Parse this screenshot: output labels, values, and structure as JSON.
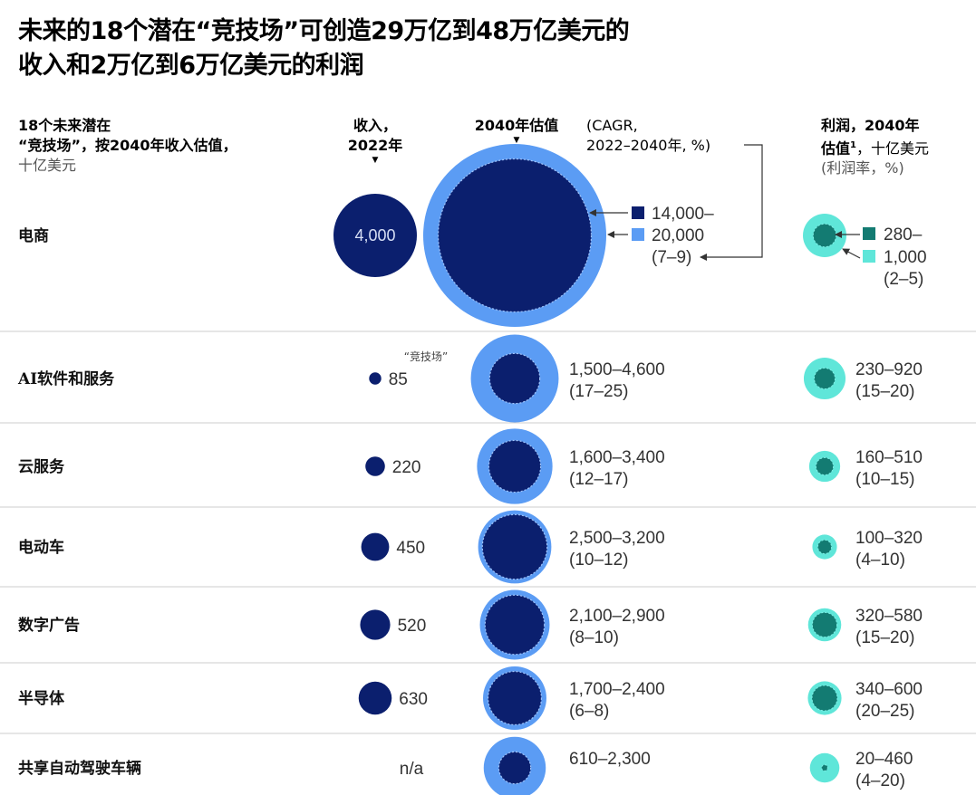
{
  "title_line1": "未来的18个潜在“竞技场”可创造29万亿到48万亿美元的",
  "title_line2": "收入和2万亿到6万亿美元的利润",
  "headers": {
    "arena_l1": "18个未来潜在",
    "arena_l2": "“竞技场”，按2040年收入估值，",
    "arena_l3": "十亿美元",
    "rev_l1": "收入，",
    "rev_l2": "2022年",
    "val_bold": "2040年估值",
    "val_cagr_l1": "(CAGR,",
    "val_cagr_l2": "2022–2040年, %)",
    "profit_l1": "利润，2040年",
    "profit_l2": "估值",
    "profit_sup": "1",
    "profit_l2b": "，十亿美元",
    "profit_l3": "(利润率，%)"
  },
  "legend": {
    "val_low": "14,000–",
    "val_high": "20,000",
    "val_cagr": "(7–9)",
    "profit_low": "280–",
    "profit_high": "1,000",
    "profit_margin": "(2–5)"
  },
  "annotation": "“竞技场”",
  "colors": {
    "navy": "#0b1f6e",
    "blue": "#5b9cf4",
    "teal_dark": "#137b72",
    "teal_light": "#5fe6d9",
    "divider": "#cccccc"
  },
  "chart_data": {
    "type": "bubble",
    "rows": [
      {
        "name": "电商",
        "revenue_2022": 4000,
        "revenue_2022_label": "4,000",
        "value_2040_low": 14000,
        "value_2040_high": 20000,
        "value_label": "14,000–20,000",
        "cagr_label": "(7–9)",
        "profit_low": 280,
        "profit_high": 1000,
        "profit_label": "280–1,000",
        "margin_label": "(2–5)"
      },
      {
        "name": "AI软件和服务",
        "revenue_2022": 85,
        "revenue_2022_label": "85",
        "value_2040_low": 1500,
        "value_2040_high": 4600,
        "value_label": "1,500–4,600",
        "cagr_label": "(17–25)",
        "profit_low": 230,
        "profit_high": 920,
        "profit_label": "230–920",
        "margin_label": "(15–20)"
      },
      {
        "name": "云服务",
        "revenue_2022": 220,
        "revenue_2022_label": "220",
        "value_2040_low": 1600,
        "value_2040_high": 3400,
        "value_label": "1,600–3,400",
        "cagr_label": "(12–17)",
        "profit_low": 160,
        "profit_high": 510,
        "profit_label": "160–510",
        "margin_label": "(10–15)"
      },
      {
        "name": "电动车",
        "revenue_2022": 450,
        "revenue_2022_label": "450",
        "value_2040_low": 2500,
        "value_2040_high": 3200,
        "value_label": "2,500–3,200",
        "cagr_label": "(10–12)",
        "profit_low": 100,
        "profit_high": 320,
        "profit_label": "100–320",
        "margin_label": "(4–10)"
      },
      {
        "name": "数字广告",
        "revenue_2022": 520,
        "revenue_2022_label": "520",
        "value_2040_low": 2100,
        "value_2040_high": 2900,
        "value_label": "2,100–2,900",
        "cagr_label": "(8–10)",
        "profit_low": 320,
        "profit_high": 580,
        "profit_label": "320–580",
        "margin_label": "(15–20)"
      },
      {
        "name": "半导体",
        "revenue_2022": 630,
        "revenue_2022_label": "630",
        "value_2040_low": 1700,
        "value_2040_high": 2400,
        "value_label": "1,700–2,400",
        "cagr_label": "(6–8)",
        "profit_low": 340,
        "profit_high": 600,
        "profit_label": "340–600",
        "margin_label": "(20–25)"
      },
      {
        "name": "共享自动驾驶车辆",
        "revenue_2022": null,
        "revenue_2022_label": "n/a",
        "value_2040_low": 610,
        "value_2040_high": 2300,
        "value_label": "610–2,300",
        "cagr_label": "",
        "profit_low": 20,
        "profit_high": 460,
        "profit_label": "20–460",
        "margin_label": "(4–20)"
      }
    ]
  }
}
